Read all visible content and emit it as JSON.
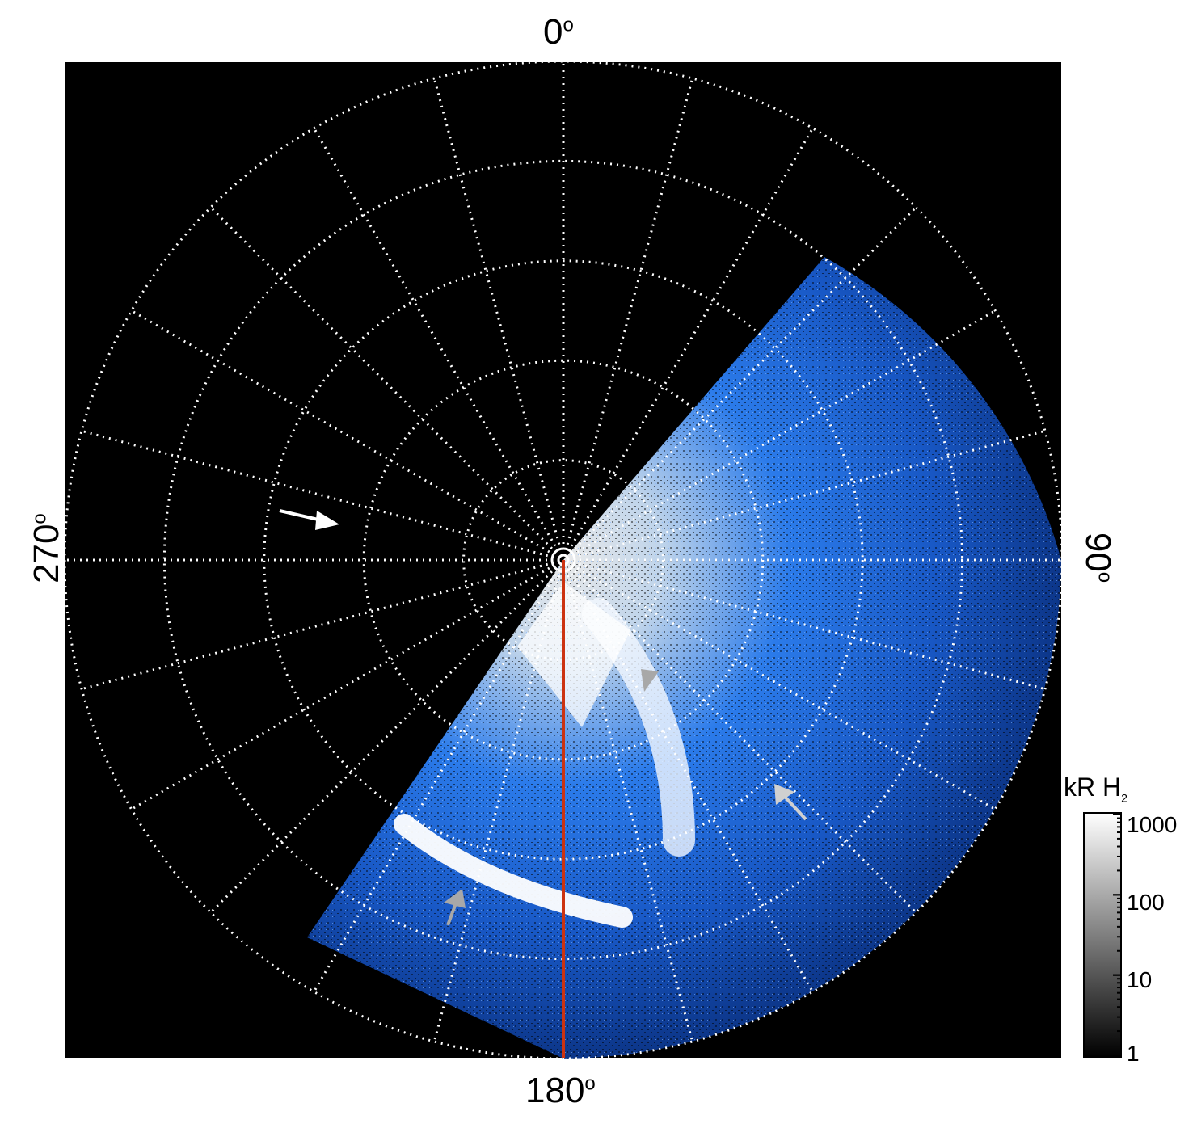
{
  "axis_labels": {
    "top": "0",
    "right": "90",
    "bottom": "180",
    "left": "270",
    "degree_symbol": "o"
  },
  "colorbar": {
    "title": "kR H",
    "title_subscript": "2",
    "tick_labels": [
      "1000",
      "100",
      "10",
      "1"
    ],
    "scale": "log",
    "range": [
      1,
      1000
    ],
    "colors": [
      "#000000",
      "#ffffff"
    ]
  },
  "image": {
    "background_color": "#000000",
    "grid_color": "#ffffff",
    "emission_color": "#1a6fff",
    "meridian_line_color": "#cc3311",
    "arrow_colors": {
      "white": "#ffffff",
      "gray": "#a8a8a8"
    }
  }
}
